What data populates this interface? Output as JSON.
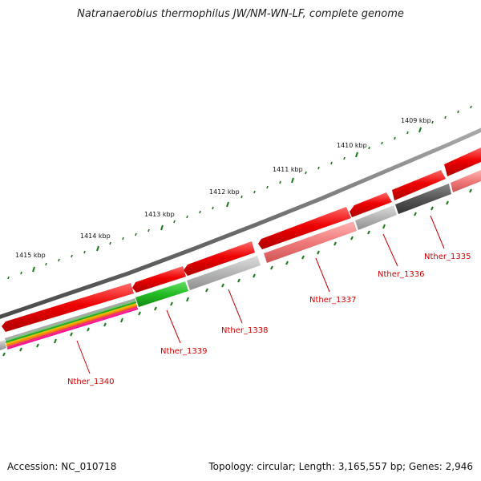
{
  "title": "Natranaerobius thermophilus JW/NM-WN-LF, complete genome",
  "footer": {
    "accession": "Accession: NC_010718",
    "summary": "Topology: circular; Length: 3,165,557 bp; Genes: 2,946"
  },
  "scale_ticks": [
    "1409 kbp",
    "1410 kbp",
    "1411 kbp",
    "1412 kbp",
    "1413 kbp",
    "1414 kbp",
    "1415 kbp"
  ],
  "gene_labels": [
    "Nther_1335",
    "Nther_1336",
    "Nther_1337",
    "Nther_1338",
    "Nther_1339",
    "Nther_1340"
  ],
  "colors": {
    "backbone": "#707070",
    "cds": "#ee0000",
    "cds_light": "#f08080",
    "grey": "#b0b0b0",
    "dark_grey": "#555555",
    "green": "#22bb22",
    "label": "#cc0000",
    "tick": "#1a7a1a"
  }
}
